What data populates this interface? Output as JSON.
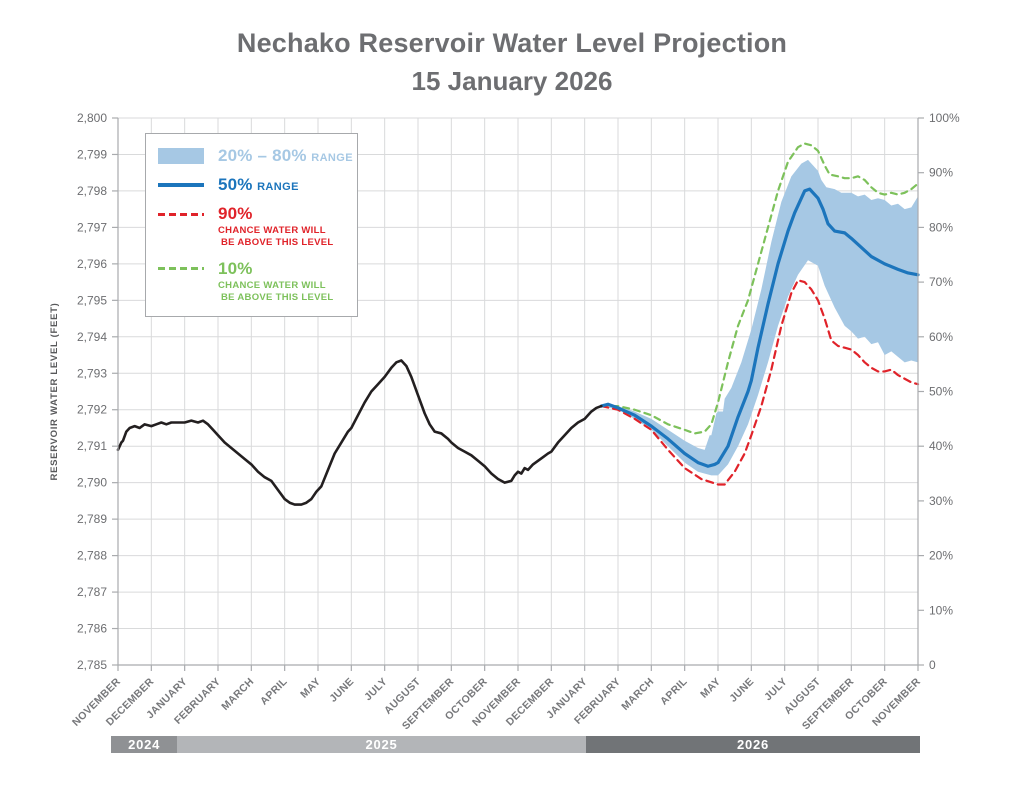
{
  "header": {
    "title_line1": "Nechako Reservoir Water Level Projection",
    "title_line2": "15 January 2026"
  },
  "legend": {
    "items": [
      {
        "symbol": "band",
        "color": "#a6c8e4",
        "big": "20% – 80%",
        "small": "RANGE"
      },
      {
        "symbol": "line",
        "color": "#1c75bc",
        "big": "50%",
        "small": "RANGE"
      },
      {
        "symbol": "dash",
        "color": "#e0232a",
        "big": "90%",
        "sub1": "CHANCE WATER WILL",
        "sub2": "BE ABOVE THIS LEVEL"
      },
      {
        "symbol": "dash",
        "color": "#7dc15b",
        "big": "10%",
        "sub1": "CHANCE WATER WILL",
        "sub2": "BE ABOVE THIS LEVEL"
      }
    ]
  },
  "timeline": [
    {
      "label": "2024",
      "from": -0.2,
      "to": 1.77,
      "color": "#8f9194"
    },
    {
      "label": "2025",
      "from": 1.77,
      "to": 14.04,
      "color": "#b3b5b8"
    },
    {
      "label": "2026",
      "from": 14.04,
      "to": 24.06,
      "color": "#717477"
    }
  ],
  "chart_data": {
    "type": "line",
    "title": "Nechako Reservoir Water Level Projection 15 January 2026",
    "ylabel_left": "RESERVOIR WATER LEVEL (FEET)",
    "ylim": [
      2785,
      2800
    ],
    "y2lim": [
      0,
      100
    ],
    "grid": true,
    "legend_position": "top-left",
    "categories": [
      "NOVEMBER",
      "DECEMBER",
      "JANUARY",
      "FEBRUARY",
      "MARCH",
      "APRIL",
      "MAY",
      "JUNE",
      "JULY",
      "AUGUST",
      "SEPTEMBER",
      "OCTOBER",
      "NOVEMBER",
      "DECEMBER",
      "JANUARY",
      "FEBRUARY",
      "MARCH",
      "APRIL",
      "MAY",
      "JUNE",
      "JULY",
      "AUGUST",
      "SEPTEMBER",
      "OCTOBER",
      "NOVEMBER"
    ],
    "yticks_left": [
      "2,800",
      "2,799",
      "2,798",
      "2,797",
      "2,796",
      "2,795",
      "2,794",
      "2,793",
      "2,792",
      "2,791",
      "2,790",
      "2,789",
      "2,788",
      "2,787",
      "2,786",
      "2,785"
    ],
    "yticks_right": [
      "100%",
      "90%",
      "80%",
      "70%",
      "60%",
      "50%",
      "40%",
      "30%",
      "20%",
      "10%",
      "0"
    ],
    "series": [
      {
        "name": "historical",
        "color": "#231f20",
        "style": "solid",
        "width": 2.6,
        "points": [
          [
            0,
            2790.9
          ],
          [
            0.1,
            2791.1
          ],
          [
            0.15,
            2791.15
          ],
          [
            0.25,
            2791.4
          ],
          [
            0.35,
            2791.5
          ],
          [
            0.5,
            2791.55
          ],
          [
            0.65,
            2791.5
          ],
          [
            0.8,
            2791.6
          ],
          [
            1.0,
            2791.55
          ],
          [
            1.15,
            2791.6
          ],
          [
            1.3,
            2791.65
          ],
          [
            1.45,
            2791.6
          ],
          [
            1.6,
            2791.65
          ],
          [
            1.8,
            2791.65
          ],
          [
            2.0,
            2791.65
          ],
          [
            2.2,
            2791.7
          ],
          [
            2.4,
            2791.65
          ],
          [
            2.55,
            2791.7
          ],
          [
            2.7,
            2791.6
          ],
          [
            2.85,
            2791.45
          ],
          [
            3.0,
            2791.3
          ],
          [
            3.2,
            2791.1
          ],
          [
            3.4,
            2790.95
          ],
          [
            3.6,
            2790.8
          ],
          [
            3.8,
            2790.65
          ],
          [
            4.0,
            2790.5
          ],
          [
            4.2,
            2790.3
          ],
          [
            4.4,
            2790.15
          ],
          [
            4.6,
            2790.05
          ],
          [
            4.8,
            2789.8
          ],
          [
            5.0,
            2789.55
          ],
          [
            5.15,
            2789.45
          ],
          [
            5.3,
            2789.4
          ],
          [
            5.5,
            2789.4
          ],
          [
            5.65,
            2789.45
          ],
          [
            5.8,
            2789.55
          ],
          [
            5.95,
            2789.75
          ],
          [
            6.1,
            2789.9
          ],
          [
            6.3,
            2790.35
          ],
          [
            6.5,
            2790.8
          ],
          [
            6.7,
            2791.1
          ],
          [
            6.9,
            2791.4
          ],
          [
            7.0,
            2791.5
          ],
          [
            7.2,
            2791.85
          ],
          [
            7.4,
            2792.2
          ],
          [
            7.6,
            2792.5
          ],
          [
            7.8,
            2792.7
          ],
          [
            8.0,
            2792.9
          ],
          [
            8.2,
            2793.15
          ],
          [
            8.35,
            2793.3
          ],
          [
            8.5,
            2793.35
          ],
          [
            8.65,
            2793.2
          ],
          [
            8.8,
            2792.9
          ],
          [
            9.0,
            2792.4
          ],
          [
            9.2,
            2791.9
          ],
          [
            9.35,
            2791.6
          ],
          [
            9.5,
            2791.4
          ],
          [
            9.7,
            2791.35
          ],
          [
            9.9,
            2791.2
          ],
          [
            10.0,
            2791.1
          ],
          [
            10.2,
            2790.95
          ],
          [
            10.4,
            2790.85
          ],
          [
            10.6,
            2790.75
          ],
          [
            10.8,
            2790.6
          ],
          [
            11.0,
            2790.45
          ],
          [
            11.2,
            2790.25
          ],
          [
            11.4,
            2790.1
          ],
          [
            11.6,
            2790.0
          ],
          [
            11.8,
            2790.05
          ],
          [
            11.9,
            2790.2
          ],
          [
            12.0,
            2790.3
          ],
          [
            12.1,
            2790.25
          ],
          [
            12.2,
            2790.4
          ],
          [
            12.3,
            2790.35
          ],
          [
            12.45,
            2790.5
          ],
          [
            12.6,
            2790.6
          ],
          [
            12.75,
            2790.7
          ],
          [
            12.9,
            2790.8
          ],
          [
            13.0,
            2790.85
          ],
          [
            13.2,
            2791.1
          ],
          [
            13.4,
            2791.3
          ],
          [
            13.6,
            2791.5
          ],
          [
            13.8,
            2791.65
          ],
          [
            14.0,
            2791.75
          ],
          [
            14.2,
            2791.95
          ],
          [
            14.35,
            2792.05
          ],
          [
            14.5,
            2792.1
          ]
        ]
      },
      {
        "name": "median-50",
        "color": "#1c75bc",
        "style": "solid",
        "width": 3.2,
        "points": [
          [
            14.5,
            2792.1
          ],
          [
            14.7,
            2792.15
          ],
          [
            15.0,
            2792.05
          ],
          [
            15.5,
            2791.85
          ],
          [
            16.0,
            2791.55
          ],
          [
            16.5,
            2791.2
          ],
          [
            17.0,
            2790.8
          ],
          [
            17.4,
            2790.55
          ],
          [
            17.7,
            2790.45
          ],
          [
            17.9,
            2790.5
          ],
          [
            18.0,
            2790.55
          ],
          [
            18.3,
            2791.0
          ],
          [
            18.6,
            2791.8
          ],
          [
            18.9,
            2792.5
          ],
          [
            19.0,
            2792.8
          ],
          [
            19.2,
            2793.7
          ],
          [
            19.5,
            2794.9
          ],
          [
            19.8,
            2796.0
          ],
          [
            20.1,
            2796.9
          ],
          [
            20.3,
            2797.4
          ],
          [
            20.6,
            2798.0
          ],
          [
            20.75,
            2798.05
          ],
          [
            20.9,
            2797.9
          ],
          [
            21.0,
            2797.8
          ],
          [
            21.15,
            2797.5
          ],
          [
            21.3,
            2797.1
          ],
          [
            21.5,
            2796.9
          ],
          [
            21.8,
            2796.85
          ],
          [
            22.0,
            2796.7
          ],
          [
            22.3,
            2796.45
          ],
          [
            22.6,
            2796.2
          ],
          [
            23.0,
            2796.0
          ],
          [
            23.4,
            2795.85
          ],
          [
            23.7,
            2795.75
          ],
          [
            24.0,
            2795.7
          ]
        ]
      },
      {
        "name": "p90-chance-above",
        "color": "#e0232a",
        "style": "dashed",
        "dash": "7 5",
        "width": 2.2,
        "points": [
          [
            14.5,
            2792.1
          ],
          [
            15.0,
            2792.0
          ],
          [
            15.5,
            2791.75
          ],
          [
            16.0,
            2791.45
          ],
          [
            16.5,
            2790.9
          ],
          [
            17.0,
            2790.4
          ],
          [
            17.5,
            2790.1
          ],
          [
            18.0,
            2789.95
          ],
          [
            18.2,
            2789.95
          ],
          [
            18.5,
            2790.3
          ],
          [
            18.8,
            2790.8
          ],
          [
            19.0,
            2791.3
          ],
          [
            19.3,
            2792.1
          ],
          [
            19.6,
            2793.1
          ],
          [
            19.9,
            2794.3
          ],
          [
            20.2,
            2795.2
          ],
          [
            20.4,
            2795.55
          ],
          [
            20.6,
            2795.5
          ],
          [
            20.8,
            2795.3
          ],
          [
            21.0,
            2795.0
          ],
          [
            21.2,
            2794.5
          ],
          [
            21.4,
            2793.9
          ],
          [
            21.6,
            2793.75
          ],
          [
            21.8,
            2793.7
          ],
          [
            22.0,
            2793.65
          ],
          [
            22.2,
            2793.5
          ],
          [
            22.4,
            2793.3
          ],
          [
            22.6,
            2793.15
          ],
          [
            22.8,
            2793.05
          ],
          [
            23.0,
            2793.05
          ],
          [
            23.2,
            2793.1
          ],
          [
            23.4,
            2792.95
          ],
          [
            23.6,
            2792.85
          ],
          [
            23.8,
            2792.75
          ],
          [
            24.0,
            2792.7
          ]
        ]
      },
      {
        "name": "p10-chance-above",
        "color": "#7dc15b",
        "style": "dashed",
        "dash": "6 5",
        "width": 2.2,
        "points": [
          [
            14.5,
            2792.1
          ],
          [
            15.0,
            2792.1
          ],
          [
            15.5,
            2792.0
          ],
          [
            16.0,
            2791.85
          ],
          [
            16.5,
            2791.6
          ],
          [
            17.0,
            2791.45
          ],
          [
            17.3,
            2791.35
          ],
          [
            17.6,
            2791.4
          ],
          [
            17.8,
            2791.6
          ],
          [
            18.0,
            2792.2
          ],
          [
            18.3,
            2793.3
          ],
          [
            18.6,
            2794.3
          ],
          [
            18.9,
            2795.0
          ],
          [
            19.2,
            2796.0
          ],
          [
            19.5,
            2797.0
          ],
          [
            19.8,
            2798.0
          ],
          [
            20.1,
            2798.8
          ],
          [
            20.4,
            2799.2
          ],
          [
            20.6,
            2799.3
          ],
          [
            20.8,
            2799.25
          ],
          [
            21.0,
            2799.1
          ],
          [
            21.2,
            2798.7
          ],
          [
            21.35,
            2798.45
          ],
          [
            21.6,
            2798.4
          ],
          [
            21.8,
            2798.35
          ],
          [
            22.0,
            2798.35
          ],
          [
            22.2,
            2798.4
          ],
          [
            22.4,
            2798.3
          ],
          [
            22.6,
            2798.1
          ],
          [
            22.8,
            2797.95
          ],
          [
            23.0,
            2797.9
          ],
          [
            23.2,
            2797.95
          ],
          [
            23.4,
            2797.9
          ],
          [
            23.6,
            2797.95
          ],
          [
            23.8,
            2798.05
          ],
          [
            24.0,
            2798.2
          ]
        ]
      },
      {
        "name": "band-20-80",
        "type": "band",
        "color": "#a6c8e4",
        "upper": [
          [
            14.5,
            2792.1
          ],
          [
            15.0,
            2792.1
          ],
          [
            15.5,
            2791.95
          ],
          [
            16.0,
            2791.75
          ],
          [
            16.5,
            2791.45
          ],
          [
            17.0,
            2791.15
          ],
          [
            17.4,
            2790.95
          ],
          [
            17.6,
            2790.9
          ],
          [
            17.75,
            2791.3
          ],
          [
            17.8,
            2791.3
          ],
          [
            17.95,
            2791.9
          ],
          [
            18.0,
            2791.95
          ],
          [
            18.15,
            2791.95
          ],
          [
            18.2,
            2792.3
          ],
          [
            18.4,
            2792.6
          ],
          [
            18.7,
            2793.3
          ],
          [
            19.0,
            2794.2
          ],
          [
            19.3,
            2795.3
          ],
          [
            19.6,
            2796.6
          ],
          [
            19.9,
            2797.7
          ],
          [
            20.2,
            2798.4
          ],
          [
            20.5,
            2798.75
          ],
          [
            20.7,
            2798.85
          ],
          [
            21.0,
            2798.55
          ],
          [
            21.1,
            2798.3
          ],
          [
            21.25,
            2798.1
          ],
          [
            21.5,
            2798.05
          ],
          [
            21.7,
            2797.95
          ],
          [
            22.0,
            2797.95
          ],
          [
            22.2,
            2797.85
          ],
          [
            22.4,
            2797.9
          ],
          [
            22.6,
            2797.75
          ],
          [
            22.8,
            2797.8
          ],
          [
            23.0,
            2797.75
          ],
          [
            23.2,
            2797.6
          ],
          [
            23.4,
            2797.65
          ],
          [
            23.6,
            2797.5
          ],
          [
            23.8,
            2797.55
          ],
          [
            23.9,
            2797.7
          ],
          [
            24.0,
            2797.85
          ]
        ],
        "lower": [
          [
            14.5,
            2792.1
          ],
          [
            15.0,
            2792.0
          ],
          [
            15.5,
            2791.75
          ],
          [
            16.0,
            2791.45
          ],
          [
            16.5,
            2791.0
          ],
          [
            17.0,
            2790.55
          ],
          [
            17.4,
            2790.3
          ],
          [
            17.8,
            2790.2
          ],
          [
            18.0,
            2790.2
          ],
          [
            18.3,
            2790.5
          ],
          [
            18.6,
            2791.0
          ],
          [
            18.9,
            2791.6
          ],
          [
            19.2,
            2792.4
          ],
          [
            19.5,
            2793.3
          ],
          [
            19.8,
            2794.3
          ],
          [
            20.1,
            2795.1
          ],
          [
            20.4,
            2795.7
          ],
          [
            20.7,
            2796.1
          ],
          [
            21.0,
            2795.95
          ],
          [
            21.2,
            2795.4
          ],
          [
            21.5,
            2794.8
          ],
          [
            21.8,
            2794.3
          ],
          [
            22.0,
            2794.15
          ],
          [
            22.2,
            2793.95
          ],
          [
            22.4,
            2794.0
          ],
          [
            22.6,
            2793.8
          ],
          [
            22.8,
            2793.85
          ],
          [
            23.0,
            2793.5
          ],
          [
            23.2,
            2793.6
          ],
          [
            23.4,
            2793.45
          ],
          [
            23.6,
            2793.3
          ],
          [
            23.8,
            2793.35
          ],
          [
            24.0,
            2793.3
          ]
        ]
      }
    ]
  }
}
